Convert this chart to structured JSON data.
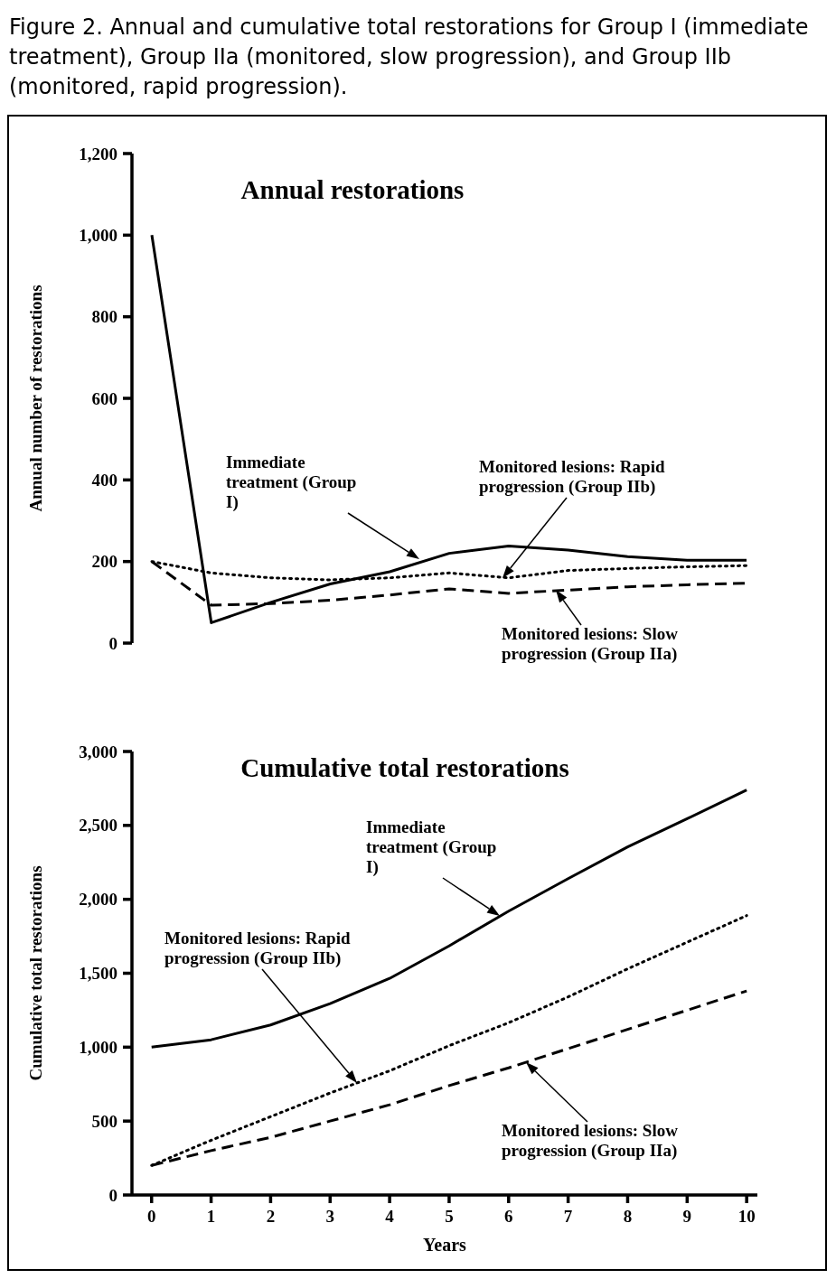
{
  "chart_data": [
    {
      "type": "line",
      "title": "Annual restorations",
      "ylabel": "Annual number of restorations",
      "annotations": [
        "Figure 2. Annual and cumulative total restorations for Group I (immediate treatment), Group IIa (monitored, slow progression), and Group IIb (monitored, rapid progression).",
        "Immediate treatment (Group I)",
        "Monitored lesions: Rapid progression (Group IIb)",
        "Monitored lesions: Slow progression (Group IIa)"
      ],
      "x": [
        0,
        1,
        2,
        3,
        4,
        5,
        6,
        7,
        8,
        9,
        10
      ],
      "series": [
        {
          "color": "#000000",
          "line_style": "solid",
          "values": [
            1000,
            50,
            100,
            145,
            175,
            220,
            238,
            228,
            212,
            203,
            203
          ]
        },
        {
          "color": "#000000",
          "line_style": "dotted",
          "values": [
            200,
            172,
            160,
            155,
            160,
            172,
            160,
            178,
            183,
            187,
            190
          ]
        },
        {
          "color": "#000000",
          "line_style": "dashed",
          "values": [
            200,
            93,
            97,
            105,
            118,
            133,
            122,
            130,
            138,
            143,
            147
          ]
        }
      ],
      "ylim": [
        0,
        1200
      ],
      "yticks": [
        {
          "value": 0,
          "label": "0"
        },
        {
          "value": 200,
          "label": "200"
        },
        {
          "value": 400,
          "label": "400"
        },
        {
          "value": 600,
          "label": "600"
        },
        {
          "value": 800,
          "label": "800"
        },
        {
          "value": 1000,
          "label": "1,000"
        },
        {
          "value": 1200,
          "label": "1,200"
        }
      ],
      "tick_labels": "y",
      "grid": false,
      "marker": "none"
    },
    {
      "type": "line",
      "title": "Cumulative total restorations",
      "xlabel": "Years",
      "ylabel": "Cumulative total restorations",
      "annotations": [
        "Immediate treatment (Group I)",
        "Monitored lesions: Rapid progression (Group IIb)",
        "Monitored lesions: Slow progression (Group IIa)"
      ],
      "x": [
        0,
        1,
        2,
        3,
        4,
        5,
        6,
        7,
        8,
        9,
        10
      ],
      "series": [
        {
          "color": "#000000",
          "line_style": "solid",
          "values": [
            1000,
            1050,
            1150,
            1295,
            1465,
            1685,
            1920,
            2140,
            2355,
            2545,
            2740
          ]
        },
        {
          "color": "#000000",
          "line_style": "dotted",
          "values": [
            200,
            370,
            530,
            690,
            840,
            1010,
            1165,
            1340,
            1530,
            1710,
            1890
          ]
        },
        {
          "color": "#000000",
          "line_style": "dashed",
          "values": [
            200,
            300,
            390,
            500,
            610,
            740,
            860,
            990,
            1120,
            1250,
            1380
          ]
        }
      ],
      "xlim": [
        -0.33,
        10.18
      ],
      "xticks": [
        0,
        1,
        2,
        3,
        4,
        5,
        6,
        7,
        8,
        9,
        10
      ],
      "ylim": [
        0,
        3000
      ],
      "yticks": [
        {
          "value": 0,
          "label": "0"
        },
        {
          "value": 500,
          "label": "500"
        },
        {
          "value": 1000,
          "label": "1,000"
        },
        {
          "value": 1500,
          "label": "1,500"
        },
        {
          "value": 2000,
          "label": "2,000"
        },
        {
          "value": 2500,
          "label": "2,500"
        },
        {
          "value": 3000,
          "label": "3,000"
        }
      ],
      "grid": false,
      "marker": "none"
    }
  ]
}
